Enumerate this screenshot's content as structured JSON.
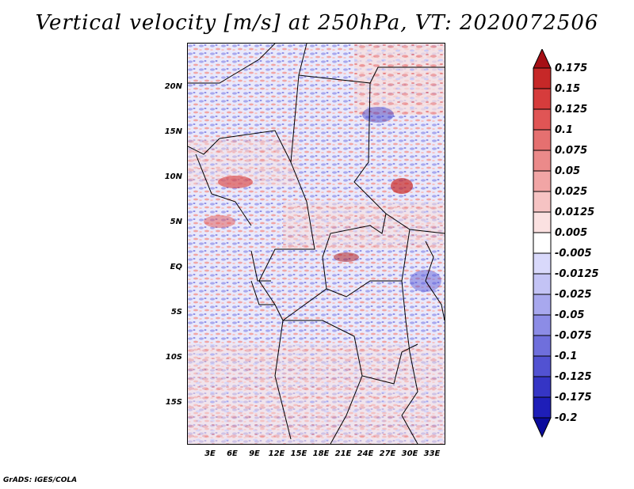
{
  "title": "Vertical velocity [m/s] at 250hPa, VT: 2020072506",
  "credit": "GrADS: IGES/COLA",
  "lat_labels": [
    "20N",
    "15N",
    "10N",
    "5N",
    "EQ",
    "5S",
    "10S",
    "15S"
  ],
  "lon_labels": [
    "3E",
    "6E",
    "9E",
    "12E",
    "15E",
    "18E",
    "21E",
    "24E",
    "27E",
    "30E",
    "33E"
  ],
  "colorbar": {
    "labels": [
      "0.175",
      "0.15",
      "0.125",
      "0.1",
      "0.075",
      "0.05",
      "0.025",
      "0.0125",
      "0.005",
      "-0.005",
      "-0.0125",
      "-0.025",
      "-0.05",
      "-0.075",
      "-0.1",
      "-0.125",
      "-0.175",
      "-0.2"
    ],
    "colors": [
      "#a50f15",
      "#c62828",
      "#d63c3c",
      "#e05555",
      "#e57070",
      "#eb8a8a",
      "#f1a5a5",
      "#f6c3c3",
      "#fbe1e1",
      "#ffffff",
      "#d9d9fb",
      "#c3c3f5",
      "#a8a8ee",
      "#8c8ce6",
      "#6f6fdc",
      "#5252d2",
      "#3535c5",
      "#1e1eb8",
      "#0b0b9c"
    ]
  }
}
